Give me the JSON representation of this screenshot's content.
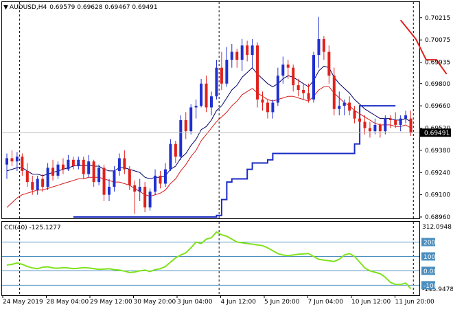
{
  "header": {
    "symbol_tf": "AUDUSD,H4",
    "ohlc": "0.69579 0.69628 0.69467 0.69491"
  },
  "colors": {
    "bull": "#1f2fd1",
    "bear": "#e0211b",
    "ma_fast": "#000066",
    "ma_slow": "#d31a1a",
    "stop_line": "#1a2bc4",
    "upper_line": "#e0211b",
    "cci": "#7fe21c",
    "grid": "#000000",
    "level_line": "#4a8fbf"
  },
  "chart_data": [
    {
      "type": "candlestick",
      "name": "AUDUSD,H4",
      "ylim": [
        0.6896,
        0.7024
      ],
      "y_ticks": [
        "0.70215",
        "0.70075",
        "0.69935",
        "0.69800",
        "0.69660",
        "0.69520",
        "0.69380",
        "0.69240",
        "0.69100",
        "0.68960"
      ],
      "current_price": "0.69491",
      "x_labels": [
        "24 May 2019",
        "28 May 04:00",
        "29 May 12:00",
        "30 May 20:00",
        "3 Jun 04:00",
        "4 Jun 12:00",
        "5 Jun 20:00",
        "7 Jun 04:00",
        "10 Jun 12:00",
        "11 Jun 20:00"
      ],
      "session_separators": [
        2.5,
        41.5,
        79.5
      ],
      "candles": [
        [
          0.6929,
          0.6936,
          0.692,
          0.6933
        ],
        [
          0.6933,
          0.6938,
          0.6928,
          0.6931
        ],
        [
          0.6931,
          0.6937,
          0.6925,
          0.6934
        ],
        [
          0.6934,
          0.6936,
          0.6922,
          0.6925
        ],
        [
          0.6925,
          0.693,
          0.6915,
          0.6918
        ],
        [
          0.6918,
          0.6922,
          0.691,
          0.6913
        ],
        [
          0.6913,
          0.6922,
          0.691,
          0.692
        ],
        [
          0.692,
          0.6923,
          0.6912,
          0.6915
        ],
        [
          0.6915,
          0.693,
          0.6913,
          0.6927
        ],
        [
          0.6927,
          0.6932,
          0.6919,
          0.6922
        ],
        [
          0.6922,
          0.6931,
          0.692,
          0.6929
        ],
        [
          0.6929,
          0.6933,
          0.6923,
          0.6926
        ],
        [
          0.6926,
          0.6935,
          0.6925,
          0.6932
        ],
        [
          0.6932,
          0.6934,
          0.6926,
          0.6928
        ],
        [
          0.6928,
          0.6934,
          0.6926,
          0.6932
        ],
        [
          0.6932,
          0.6934,
          0.692,
          0.6923
        ],
        [
          0.6923,
          0.6935,
          0.6921,
          0.6931
        ],
        [
          0.6931,
          0.6932,
          0.6915,
          0.6918
        ],
        [
          0.6918,
          0.6929,
          0.6916,
          0.6927
        ],
        [
          0.6927,
          0.6929,
          0.6906,
          0.691
        ],
        [
          0.691,
          0.692,
          0.6906,
          0.6915
        ],
        [
          0.6915,
          0.6928,
          0.6912,
          0.6925
        ],
        [
          0.6925,
          0.6936,
          0.6922,
          0.6933
        ],
        [
          0.6933,
          0.6938,
          0.6923,
          0.6926
        ],
        [
          0.6926,
          0.6928,
          0.6913,
          0.6916
        ],
        [
          0.6916,
          0.6919,
          0.6898,
          0.6912
        ],
        [
          0.6912,
          0.692,
          0.6906,
          0.6915
        ],
        [
          0.6915,
          0.6918,
          0.6899,
          0.6902
        ],
        [
          0.6902,
          0.6914,
          0.69,
          0.6912
        ],
        [
          0.6912,
          0.6926,
          0.691,
          0.6922
        ],
        [
          0.6922,
          0.6925,
          0.6914,
          0.6917
        ],
        [
          0.6917,
          0.693,
          0.6915,
          0.6926
        ],
        [
          0.6926,
          0.6945,
          0.6925,
          0.6942
        ],
        [
          0.6942,
          0.6944,
          0.693,
          0.6934
        ],
        [
          0.6934,
          0.696,
          0.6932,
          0.6957
        ],
        [
          0.6957,
          0.6962,
          0.6945,
          0.695
        ],
        [
          0.695,
          0.6967,
          0.6948,
          0.6965
        ],
        [
          0.6965,
          0.697,
          0.6958,
          0.6966
        ],
        [
          0.6966,
          0.6983,
          0.6965,
          0.698
        ],
        [
          0.698,
          0.6985,
          0.6962,
          0.6965
        ],
        [
          0.6965,
          0.6975,
          0.696,
          0.6972
        ],
        [
          0.6972,
          0.6995,
          0.697,
          0.699
        ],
        [
          0.699,
          0.7,
          0.6976,
          0.698
        ],
        [
          0.698,
          0.7003,
          0.6978,
          0.6995
        ],
        [
          0.6995,
          0.7005,
          0.699,
          0.7
        ],
        [
          0.7,
          0.7002,
          0.699,
          0.6995
        ],
        [
          0.6995,
          0.7008,
          0.6988,
          0.7004
        ],
        [
          0.7004,
          0.7007,
          0.6994,
          0.6998
        ],
        [
          0.6998,
          0.7008,
          0.699,
          0.7004
        ],
        [
          0.7004,
          0.7006,
          0.6965,
          0.697
        ],
        [
          0.697,
          0.6975,
          0.6963,
          0.6968
        ],
        [
          0.6968,
          0.697,
          0.6958,
          0.6962
        ],
        [
          0.6962,
          0.697,
          0.6958,
          0.6968
        ],
        [
          0.6968,
          0.699,
          0.6966,
          0.6985
        ],
        [
          0.6985,
          0.6997,
          0.698,
          0.6992
        ],
        [
          0.6992,
          0.6995,
          0.6983,
          0.699
        ],
        [
          0.699,
          0.6992,
          0.6975,
          0.6979
        ],
        [
          0.6979,
          0.6983,
          0.6972,
          0.6976
        ],
        [
          0.6976,
          0.698,
          0.697,
          0.6974
        ],
        [
          0.6974,
          0.698,
          0.6968,
          0.697
        ],
        [
          0.697,
          0.7,
          0.6968,
          0.6998
        ],
        [
          0.6998,
          0.7022,
          0.699,
          0.7008
        ],
        [
          0.7008,
          0.701,
          0.6995,
          0.7
        ],
        [
          0.7,
          0.7004,
          0.698,
          0.6985
        ],
        [
          0.6985,
          0.699,
          0.696,
          0.6964
        ],
        [
          0.6964,
          0.6975,
          0.696,
          0.6966
        ],
        [
          0.6966,
          0.697,
          0.696,
          0.6968
        ],
        [
          0.6968,
          0.6972,
          0.696,
          0.6963
        ],
        [
          0.6963,
          0.6966,
          0.6955,
          0.6958
        ],
        [
          0.6958,
          0.6962,
          0.6952,
          0.6956
        ],
        [
          0.6956,
          0.696,
          0.6948,
          0.6952
        ],
        [
          0.6952,
          0.6956,
          0.6946,
          0.695
        ],
        [
          0.695,
          0.6958,
          0.6948,
          0.6954
        ],
        [
          0.6954,
          0.6955,
          0.6946,
          0.695
        ],
        [
          0.695,
          0.696,
          0.6948,
          0.6958
        ],
        [
          0.6958,
          0.696,
          0.6952,
          0.6957
        ],
        [
          0.6957,
          0.6962,
          0.6952,
          0.6954
        ],
        [
          0.6954,
          0.696,
          0.695,
          0.6958
        ],
        [
          0.6958,
          0.6963,
          0.6955,
          0.696
        ],
        [
          0.6958,
          0.6963,
          0.6947,
          0.6949
        ]
      ],
      "ma_fast": [
        0.6925,
        0.6926,
        0.6927,
        0.6927,
        0.6925,
        0.6923,
        0.6923,
        0.6922,
        0.6923,
        0.6924,
        0.6925,
        0.6926,
        0.6927,
        0.6928,
        0.6929,
        0.6928,
        0.6929,
        0.6928,
        0.6928,
        0.6926,
        0.6925,
        0.6925,
        0.6927,
        0.6927,
        0.6926,
        0.6925,
        0.6924,
        0.6921,
        0.692,
        0.6921,
        0.6921,
        0.6922,
        0.6926,
        0.6928,
        0.6933,
        0.6936,
        0.6941,
        0.6945,
        0.6951,
        0.6953,
        0.6957,
        0.6963,
        0.6966,
        0.6971,
        0.6976,
        0.6979,
        0.6984,
        0.6987,
        0.699,
        0.6986,
        0.6983,
        0.698,
        0.6978,
        0.698,
        0.6983,
        0.6985,
        0.6984,
        0.6982,
        0.698,
        0.6978,
        0.6982,
        0.6988,
        0.6991,
        0.699,
        0.6984,
        0.698,
        0.6977,
        0.6974,
        0.697,
        0.6967,
        0.6964,
        0.6962,
        0.696,
        0.6958,
        0.6958,
        0.6958,
        0.6957,
        0.6957,
        0.6958,
        0.6956
      ],
      "ma_slow": [
        0.6902,
        0.6905,
        0.6908,
        0.691,
        0.6911,
        0.6912,
        0.6913,
        0.6913,
        0.6914,
        0.6915,
        0.6916,
        0.6917,
        0.6918,
        0.6919,
        0.692,
        0.692,
        0.6921,
        0.6921,
        0.6921,
        0.692,
        0.6919,
        0.6918,
        0.6918,
        0.6917,
        0.6916,
        0.6914,
        0.6912,
        0.691,
        0.6909,
        0.691,
        0.6911,
        0.6913,
        0.6917,
        0.692,
        0.6925,
        0.6929,
        0.6934,
        0.6938,
        0.6944,
        0.6948,
        0.6952,
        0.6956,
        0.6959,
        0.6962,
        0.6966,
        0.6969,
        0.6973,
        0.6975,
        0.6977,
        0.6974,
        0.6972,
        0.697,
        0.6969,
        0.697,
        0.6971,
        0.6972,
        0.6972,
        0.6971,
        0.697,
        0.6969,
        0.6972,
        0.6976,
        0.6978,
        0.6978,
        0.6974,
        0.6971,
        0.6968,
        0.6966,
        0.6963,
        0.6961,
        0.6959,
        0.6957,
        0.6955,
        0.6954,
        0.6954,
        0.6954,
        0.6953,
        0.6953,
        0.6954,
        0.6952
      ],
      "stop_line": [
        [
          13,
          0.6896
        ],
        [
          40,
          0.6896
        ],
        [
          41,
          0.6897
        ],
        [
          42,
          0.6907
        ],
        [
          43,
          0.6918
        ],
        [
          44,
          0.692
        ],
        [
          47,
          0.6926
        ],
        [
          48,
          0.693
        ],
        [
          51,
          0.6932
        ],
        [
          52,
          0.6936
        ],
        [
          67,
          0.6936
        ],
        [
          68,
          0.6942
        ],
        [
          69,
          0.6966
        ],
        [
          76,
          0.6966
        ]
      ],
      "upper_line": [
        [
          77,
          0.702
        ],
        [
          79,
          0.7012
        ],
        [
          80,
          0.7008
        ],
        [
          82,
          0.6995
        ],
        [
          84,
          0.6995
        ],
        [
          86,
          0.6986
        ]
      ]
    },
    {
      "type": "line",
      "name": "CCI(40)",
      "label": "CCI(40) -125.1277",
      "ylim": [
        -145.9478,
        312.0948
      ],
      "levels": [
        200,
        100,
        0,
        -100
      ],
      "level_labels": [
        "200",
        "100",
        "0.00",
        "-100"
      ],
      "top_label": "312.0948",
      "bottom_label": "-145.9478",
      "values": [
        40,
        45,
        55,
        45,
        30,
        20,
        15,
        25,
        28,
        20,
        18,
        22,
        20,
        15,
        18,
        22,
        20,
        15,
        10,
        12,
        15,
        8,
        5,
        -2,
        -12,
        -8,
        0,
        5,
        -5,
        8,
        15,
        30,
        60,
        90,
        110,
        125,
        160,
        200,
        190,
        220,
        230,
        270,
        250,
        240,
        220,
        200,
        195,
        190,
        185,
        180,
        175,
        160,
        140,
        120,
        110,
        105,
        110,
        115,
        118,
        120,
        100,
        80,
        75,
        70,
        65,
        80,
        110,
        120,
        100,
        60,
        20,
        0,
        -10,
        -20,
        -45,
        -80,
        -95,
        -95,
        -85,
        -125
      ]
    }
  ]
}
